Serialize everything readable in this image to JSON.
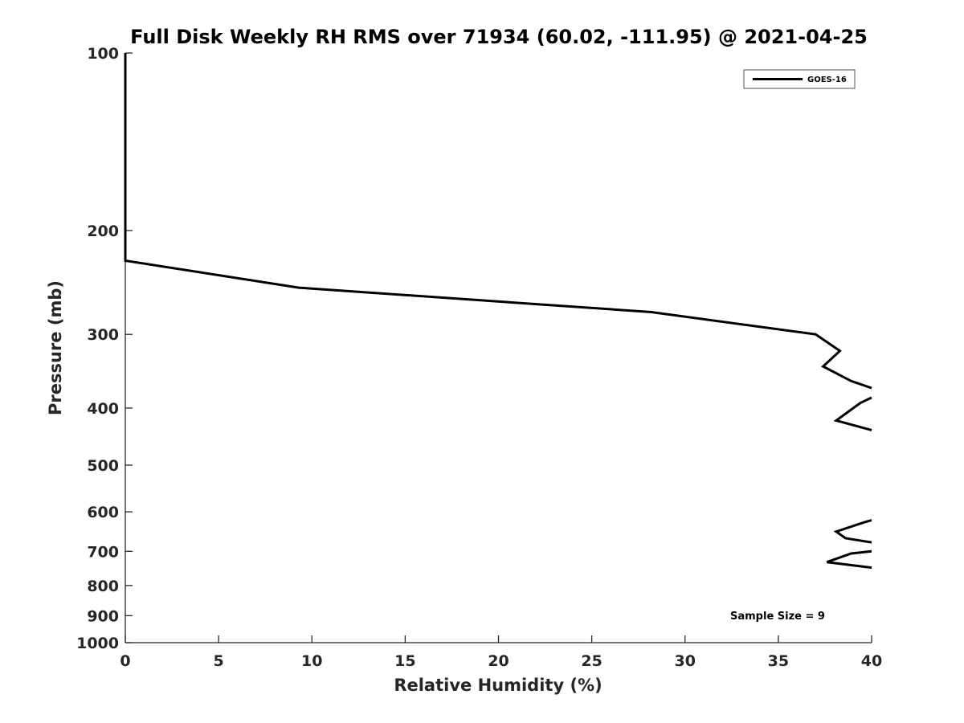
{
  "chart_data": {
    "type": "line",
    "title": "Full Disk Weekly RH RMS over 71934 (60.02, -111.95) @ 2021-04-25",
    "xlabel": "Relative Humidity (%)",
    "ylabel": "Pressure (mb)",
    "xlim": [
      0,
      40
    ],
    "ylim": [
      100,
      1000
    ],
    "yscale": "log",
    "yreversed": true,
    "x_ticks": [
      "0",
      "5",
      "10",
      "15",
      "20",
      "25",
      "30",
      "35",
      "40"
    ],
    "y_ticks": [
      "100",
      "200",
      "300",
      "400",
      "500",
      "600",
      "700",
      "800",
      "900",
      "1000"
    ],
    "grid": false,
    "legend": {
      "position": "top-right",
      "entries": [
        "GOES-16"
      ]
    },
    "annotation": "Sample Size = 9",
    "series": [
      {
        "name": "GOES-16",
        "color": "#000000",
        "segments": [
          [
            {
              "p": 100,
              "rh": 0.0
            },
            {
              "p": 150,
              "rh": 0.0
            },
            {
              "p": 200,
              "rh": 0.0
            },
            {
              "p": 225,
              "rh": 0.0
            },
            {
              "p": 250,
              "rh": 9.3
            },
            {
              "p": 275,
              "rh": 28.2
            },
            {
              "p": 300,
              "rh": 37.0
            },
            {
              "p": 320,
              "rh": 38.3
            },
            {
              "p": 340,
              "rh": 37.4
            },
            {
              "p": 360,
              "rh": 38.9
            },
            {
              "p": 370,
              "rh": 40.0
            }
          ],
          [
            {
              "p": 384,
              "rh": 40.0
            },
            {
              "p": 392,
              "rh": 39.4
            },
            {
              "p": 420,
              "rh": 38.1
            },
            {
              "p": 436,
              "rh": 40.0
            }
          ],
          [
            {
              "p": 620,
              "rh": 40.0
            },
            {
              "p": 625,
              "rh": 39.6
            },
            {
              "p": 648,
              "rh": 38.1
            },
            {
              "p": 665,
              "rh": 38.6
            },
            {
              "p": 676,
              "rh": 40.0
            }
          ],
          [
            {
              "p": 700,
              "rh": 40.0
            },
            {
              "p": 706,
              "rh": 38.9
            },
            {
              "p": 730,
              "rh": 37.6
            },
            {
              "p": 746,
              "rh": 40.0
            }
          ]
        ]
      }
    ]
  }
}
